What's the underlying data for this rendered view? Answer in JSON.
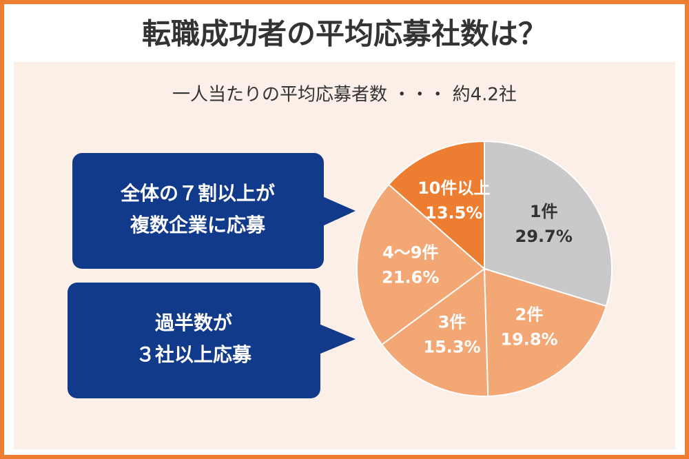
{
  "chart_data": {
    "type": "pie",
    "title": "転職成功者の平均応募社数は？",
    "subtitle": "一人当たりの平均応募者数 ・・・ 約4.2社",
    "categories": [
      "1件",
      "2件",
      "3件",
      "4〜9件",
      "10件以上"
    ],
    "values": [
      29.7,
      19.8,
      15.3,
      21.6,
      13.5
    ],
    "value_labels": [
      "29.7%",
      "19.8%",
      "15.3%",
      "21.6%",
      "13.5%"
    ],
    "colors": [
      "#c9c9c9",
      "#f2a774",
      "#f2a774",
      "#f2a774",
      "#ec7d31"
    ],
    "label_colors": [
      "#333333",
      "#ffffff",
      "#ffffff",
      "#ffffff",
      "#ffffff"
    ],
    "annotations": [
      {
        "lines": [
          "全体の７割以上が",
          "複数企業に応募"
        ]
      },
      {
        "lines": [
          "過半数が",
          "３社以上応募"
        ]
      }
    ]
  }
}
